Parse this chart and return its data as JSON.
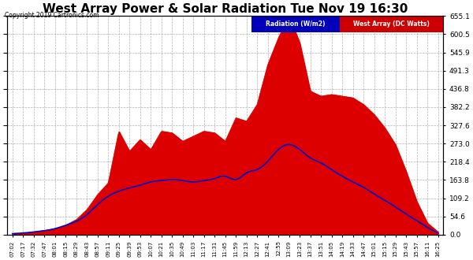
{
  "title": "West Array Power & Solar Radiation Tue Nov 19 16:30",
  "copyright": "Copyright 2019 Cartronics.com",
  "legend_radiation": "Radiation (W/m2)",
  "legend_west": "West Array (DC Watts)",
  "yticks": [
    0.0,
    54.6,
    109.2,
    163.8,
    218.4,
    273.0,
    327.6,
    382.2,
    436.8,
    491.3,
    545.9,
    600.5,
    655.1
  ],
  "ymax": 655.1,
  "background_color": "#ffffff",
  "plot_bg_color": "#ffffff",
  "grid_color": "#b0b0b0",
  "radiation_color": "#0000cc",
  "power_color": "#dd0000",
  "title_color": "#000000",
  "title_fontsize": 11,
  "x_times": [
    "07:02",
    "07:17",
    "07:32",
    "07:47",
    "08:01",
    "08:15",
    "08:29",
    "08:43",
    "08:57",
    "09:11",
    "09:25",
    "09:39",
    "09:53",
    "10:07",
    "10:21",
    "10:35",
    "10:49",
    "11:03",
    "11:17",
    "11:31",
    "11:45",
    "11:59",
    "12:13",
    "12:27",
    "12:41",
    "12:55",
    "13:09",
    "13:23",
    "13:37",
    "13:51",
    "14:05",
    "14:19",
    "14:33",
    "14:47",
    "15:01",
    "15:15",
    "15:29",
    "15:43",
    "15:57",
    "16:11",
    "16:25"
  ],
  "power_values": [
    2,
    4,
    8,
    12,
    18,
    28,
    45,
    75,
    120,
    155,
    310,
    250,
    285,
    255,
    310,
    305,
    280,
    295,
    310,
    305,
    280,
    350,
    340,
    390,
    510,
    590,
    655,
    575,
    430,
    415,
    420,
    415,
    410,
    390,
    360,
    320,
    270,
    190,
    100,
    35,
    8
  ],
  "radiation_values": [
    3,
    5,
    8,
    12,
    18,
    28,
    40,
    60,
    90,
    115,
    130,
    140,
    148,
    158,
    162,
    165,
    162,
    158,
    162,
    168,
    175,
    165,
    185,
    195,
    220,
    255,
    270,
    255,
    230,
    215,
    195,
    175,
    158,
    142,
    122,
    103,
    83,
    62,
    42,
    22,
    5
  ]
}
